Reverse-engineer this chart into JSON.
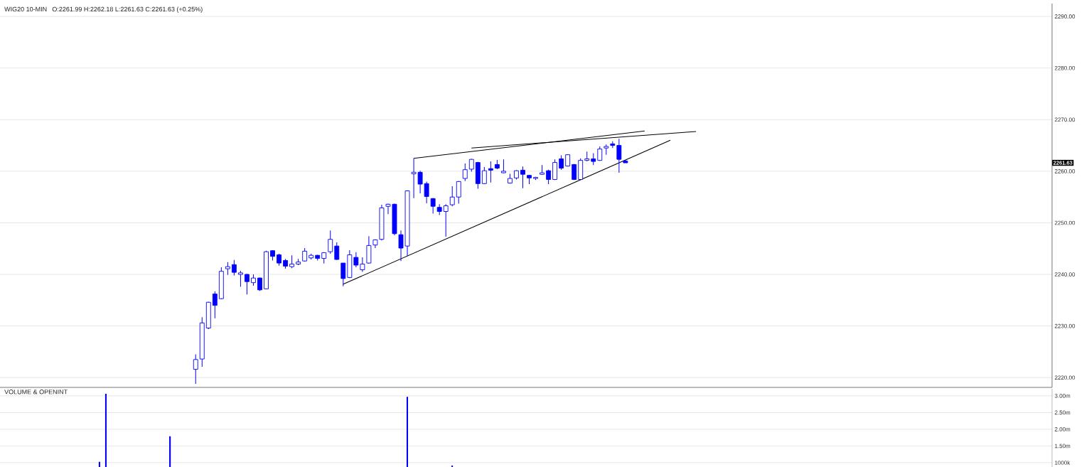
{
  "chart_data": [
    {
      "type": "candlestick",
      "title": "WIG20 10-MIN",
      "subtitle": "O:2261.99 H:2262.18 L:2261.63 C:2261.63 (+0.25%)",
      "color": "#0000ff",
      "categories": [
        null,
        null,
        null,
        null,
        null,
        null,
        null,
        null,
        null,
        null,
        null,
        null,
        null,
        null,
        null,
        null,
        null,
        null,
        null,
        null,
        null,
        null,
        null,
        null,
        null,
        null,
        null,
        null,
        null,
        null,
        null,
        null,
        null,
        null,
        null,
        null,
        null,
        null,
        null,
        null,
        null,
        null,
        null,
        null,
        null,
        null,
        null,
        null,
        null,
        null,
        null,
        null,
        null,
        null,
        null,
        null,
        null,
        null,
        null,
        null,
        null,
        null,
        null,
        null,
        null,
        null,
        null,
        null,
        null,
        null,
        null,
        null,
        null,
        null,
        null,
        null,
        null,
        null,
        null,
        null,
        null,
        null,
        null,
        null,
        null,
        null,
        null,
        null,
        null,
        null,
        null,
        null,
        null,
        null,
        null,
        null,
        null,
        null,
        null,
        null,
        null,
        null,
        null,
        null,
        null,
        null,
        null,
        null,
        null,
        null,
        null,
        null,
        null,
        null,
        null,
        null,
        null,
        null,
        null,
        null,
        null,
        null,
        null,
        null,
        null,
        null,
        null,
        null,
        null,
        null,
        null,
        null,
        null,
        null,
        null,
        null,
        null,
        null,
        null,
        null,
        null,
        null,
        null,
        null,
        null,
        null,
        null,
        null,
        null,
        null,
        null,
        null,
        null,
        null,
        null,
        null,
        null,
        null,
        null,
        null,
        null,
        null,
        null,
        null
      ],
      "ohlc": [
        null,
        null,
        null,
        null,
        null,
        null,
        null,
        null,
        null,
        null,
        null,
        null,
        null,
        null,
        null,
        null,
        null,
        null,
        null,
        null,
        null,
        null,
        null,
        null,
        null,
        null,
        null,
        null,
        null,
        null,
        [
          2221.6,
          2224.5,
          2218.8,
          2223.5
        ],
        [
          2223.6,
          2231.7,
          2222.1,
          2230.6
        ],
        [
          2229.6,
          2234.7,
          2229.4,
          2234.6
        ],
        [
          2236.2,
          2236.7,
          2231.5,
          2234.0
        ],
        [
          2235.3,
          2241.4,
          2235.2,
          2240.6
        ],
        [
          2241.1,
          2242.4,
          2239.9,
          2241.5
        ],
        [
          2241.9,
          2242.8,
          2239.8,
          2240.4
        ],
        [
          2240.0,
          2240.7,
          2237.6,
          2240.3
        ],
        [
          2240.0,
          2240.1,
          2236.1,
          2238.6
        ],
        [
          2238.4,
          2240.0,
          2237.8,
          2239.3
        ],
        [
          2239.3,
          2239.4,
          2236.8,
          2237.0
        ],
        [
          2237.2,
          2244.6,
          2237.1,
          2244.4
        ],
        [
          2244.6,
          2244.7,
          2242.7,
          2243.5
        ],
        [
          2243.8,
          2244.0,
          2241.7,
          2242.2
        ],
        [
          2242.7,
          2243.0,
          2241.1,
          2241.6
        ],
        [
          2241.5,
          2243.7,
          2241.2,
          2242.0
        ],
        [
          2242.0,
          2243.0,
          2241.8,
          2242.4
        ],
        [
          2242.6,
          2245.1,
          2242.5,
          2244.5
        ],
        [
          2243.2,
          2244.0,
          2242.9,
          2243.7
        ],
        [
          2243.7,
          2243.8,
          2242.7,
          2243.1
        ],
        [
          2243.1,
          2244.3,
          2242.1,
          2244.2
        ],
        [
          2244.4,
          2248.5,
          2244.0,
          2246.8
        ],
        [
          2245.5,
          2246.2,
          2242.8,
          2242.9
        ],
        [
          2242.2,
          2242.2,
          2237.7,
          2239.2
        ],
        [
          2239.4,
          2244.7,
          2239.3,
          2243.8
        ],
        [
          2243.3,
          2244.3,
          2241.4,
          2241.8
        ],
        [
          2240.9,
          2243.3,
          2240.5,
          2242.0
        ],
        [
          2242.2,
          2247.4,
          2242.1,
          2245.6
        ],
        [
          2245.7,
          2246.8,
          2245.1,
          2246.7
        ],
        [
          2246.8,
          2253.5,
          2246.6,
          2252.9
        ],
        [
          2253.2,
          2253.7,
          2251.7,
          2253.6
        ],
        [
          2253.6,
          2253.7,
          2247.6,
          2247.9
        ],
        [
          2247.7,
          2248.5,
          2242.6,
          2245.1
        ],
        [
          2245.5,
          2256.3,
          2243.6,
          2256.2
        ],
        [
          2259.5,
          2262.5,
          2254.8,
          2259.8
        ],
        [
          2259.8,
          2260.1,
          2255.7,
          2257.5
        ],
        [
          2257.6,
          2258.0,
          2253.8,
          2255.1
        ],
        [
          2254.7,
          2254.8,
          2251.8,
          2253.2
        ],
        [
          2253.0,
          2253.6,
          2251.5,
          2252.2
        ],
        [
          2252.2,
          2253.6,
          2247.3,
          2253.3
        ],
        [
          2253.5,
          2257.1,
          2253.2,
          2255.0
        ],
        [
          2255.0,
          2258.1,
          2253.7,
          2258.0
        ],
        [
          2258.6,
          2261.5,
          2258.1,
          2260.3
        ],
        [
          2260.4,
          2262.4,
          2259.9,
          2262.3
        ],
        [
          2261.7,
          2261.8,
          2256.6,
          2257.6
        ],
        [
          2257.6,
          2260.8,
          2257.5,
          2260.1
        ],
        [
          2260.5,
          2261.9,
          2257.8,
          2260.2
        ],
        [
          2261.3,
          2262.2,
          2260.4,
          2260.6
        ],
        [
          2259.7,
          2262.3,
          2259.6,
          2260.0
        ],
        [
          2257.7,
          2259.5,
          2257.6,
          2258.6
        ],
        [
          2258.7,
          2260.2,
          2258.4,
          2260.1
        ],
        [
          2260.2,
          2260.9,
          2256.7,
          2259.4
        ],
        [
          2259.2,
          2259.3,
          2257.5,
          2258.7
        ],
        [
          2258.6,
          2258.9,
          2258.3,
          2258.8
        ],
        [
          2259.4,
          2261.2,
          2259.3,
          2259.7
        ],
        [
          2260.1,
          2260.3,
          2257.5,
          2258.4
        ],
        [
          2258.4,
          2262.3,
          2258.3,
          2261.7
        ],
        [
          2262.4,
          2263.1,
          2260.3,
          2260.6
        ],
        [
          2261.0,
          2263.3,
          2260.9,
          2263.2
        ],
        [
          2261.3,
          2261.4,
          2258.3,
          2258.4
        ],
        [
          2258.4,
          2262.5,
          2258.3,
          2262.1
        ],
        [
          2262.1,
          2263.8,
          2261.9,
          2262.4
        ],
        [
          2262.4,
          2263.5,
          2261.2,
          2261.9
        ],
        [
          2262.1,
          2264.8,
          2262.0,
          2264.3
        ],
        [
          2264.5,
          2265.2,
          2263.2,
          2264.8
        ],
        [
          2265.3,
          2265.8,
          2264.5,
          2265.0
        ],
        [
          2265.0,
          2266.3,
          2259.7,
          2262.3
        ],
        [
          2261.99,
          2262.18,
          2261.63,
          2261.63
        ],
        null,
        null,
        null,
        null,
        null,
        null,
        null,
        null,
        null,
        null,
        null,
        null,
        null,
        null,
        null,
        null,
        null,
        null,
        null,
        null,
        null,
        null,
        null,
        null,
        null,
        null,
        null,
        null,
        null,
        null,
        null,
        null,
        null,
        null,
        null,
        null,
        null,
        null,
        null,
        null,
        null,
        null,
        null,
        null,
        null,
        null,
        null,
        null,
        null,
        null,
        null,
        null,
        null,
        null,
        null,
        null,
        null,
        null,
        null,
        null,
        null,
        null,
        null,
        null,
        null,
        null
      ],
      "series": [
        {
          "type": "line",
          "color": "#000000",
          "values": [
            null,
            null,
            null,
            null,
            null,
            null,
            null,
            null,
            null,
            null,
            null,
            null,
            null,
            null,
            null,
            null,
            null,
            null,
            null,
            null,
            null,
            null,
            null,
            null,
            null,
            null,
            null,
            null,
            null,
            null,
            null,
            null,
            null,
            null,
            null,
            null,
            null,
            null,
            null,
            null,
            null,
            null,
            null,
            null,
            null,
            null,
            null,
            null,
            null,
            null,
            null,
            null,
            null,
            2238.1,
            null,
            null,
            null,
            null,
            null,
            null,
            null,
            null,
            null,
            null,
            null,
            null,
            null,
            null,
            null,
            null,
            null,
            null,
            null,
            null,
            null,
            null,
            null,
            null,
            null,
            null,
            null,
            null,
            null,
            null,
            null,
            null,
            null,
            null,
            null,
            null,
            null,
            null,
            null,
            null,
            null,
            null,
            null,
            null,
            null,
            null,
            null,
            null,
            null,
            null,
            2266.0,
            null,
            null,
            null,
            null,
            null,
            null,
            null,
            null,
            null,
            null,
            null,
            null,
            null,
            null,
            null,
            null,
            null,
            null,
            null,
            null,
            null,
            null,
            null,
            null,
            null,
            null,
            null,
            null,
            null,
            null,
            null,
            null,
            null,
            null,
            null,
            null,
            null,
            null,
            null,
            null,
            null,
            null,
            null,
            null,
            null,
            null,
            null,
            null,
            null,
            null,
            null,
            null,
            null,
            null,
            null,
            null,
            null,
            null,
            null
          ]
        },
        {
          "type": "line",
          "color": "#000000",
          "values": [
            null,
            null,
            null,
            null,
            null,
            null,
            null,
            null,
            null,
            null,
            null,
            null,
            null,
            null,
            null,
            null,
            null,
            null,
            null,
            null,
            null,
            null,
            null,
            null,
            null,
            null,
            null,
            null,
            null,
            null,
            null,
            null,
            null,
            null,
            null,
            null,
            null,
            null,
            null,
            null,
            null,
            null,
            null,
            null,
            null,
            null,
            null,
            null,
            null,
            null,
            null,
            null,
            null,
            null,
            null,
            null,
            null,
            null,
            null,
            null,
            null,
            null,
            null,
            null,
            2262.5,
            null,
            null,
            null,
            null,
            null,
            null,
            null,
            null,
            null,
            null,
            null,
            null,
            null,
            null,
            null,
            null,
            null,
            null,
            null,
            null,
            null,
            null,
            null,
            null,
            null,
            null,
            null,
            null,
            null,
            null,
            null,
            null,
            null,
            null,
            null,
            2267.8,
            null,
            null,
            null,
            null,
            null,
            null,
            null,
            null,
            null,
            null,
            null,
            null,
            null,
            null,
            null,
            null,
            null,
            null,
            null,
            null,
            null,
            null,
            null,
            null,
            null,
            null,
            null,
            null,
            null,
            null,
            null,
            null,
            null,
            null,
            null,
            null,
            null,
            null,
            null,
            null,
            null,
            null,
            null,
            null,
            null,
            null,
            null,
            null,
            null,
            null,
            null,
            null,
            null,
            null,
            null,
            null,
            null,
            null,
            null,
            null,
            null,
            null,
            null
          ]
        },
        {
          "type": "line",
          "color": "#000000",
          "values": [
            null,
            null,
            null,
            null,
            null,
            null,
            null,
            null,
            null,
            null,
            null,
            null,
            null,
            null,
            null,
            null,
            null,
            null,
            null,
            null,
            null,
            null,
            null,
            null,
            null,
            null,
            null,
            null,
            null,
            null,
            null,
            null,
            null,
            null,
            null,
            null,
            null,
            null,
            null,
            null,
            null,
            null,
            null,
            null,
            null,
            null,
            null,
            null,
            null,
            null,
            null,
            null,
            null,
            null,
            null,
            null,
            null,
            null,
            null,
            null,
            null,
            null,
            null,
            null,
            null,
            null,
            null,
            null,
            null,
            null,
            null,
            null,
            null,
            2264.5,
            null,
            null,
            null,
            null,
            null,
            null,
            null,
            null,
            null,
            null,
            null,
            null,
            null,
            null,
            null,
            null,
            null,
            null,
            null,
            null,
            null,
            null,
            null,
            null,
            null,
            null,
            null,
            null,
            null,
            null,
            null,
            null,
            null,
            null,
            2267.7,
            null,
            null,
            null,
            null,
            null,
            null,
            null,
            null,
            null,
            null,
            null,
            null,
            null,
            null,
            null,
            null,
            null,
            null,
            null,
            null,
            null,
            null,
            null,
            null,
            null,
            null,
            null,
            null,
            null,
            null,
            null,
            null,
            null,
            null,
            null,
            null,
            null,
            null,
            null,
            null,
            null,
            null,
            null,
            null,
            null,
            null,
            null,
            null,
            null,
            null,
            null,
            null,
            null,
            null,
            null
          ]
        }
      ],
      "ylim": [
        2218.1,
        2292.5
      ],
      "yticks": [
        {
          "value": 2220,
          "label": "2220.00"
        },
        {
          "value": 2230,
          "label": "2230.00"
        },
        {
          "value": 2240,
          "label": "2240.00"
        },
        {
          "value": 2250,
          "label": "2250.00"
        },
        {
          "value": 2260,
          "label": "2260.00"
        },
        {
          "value": 2270,
          "label": "2270.00"
        },
        {
          "value": 2280,
          "label": "2280.00"
        },
        {
          "value": 2290,
          "label": "2290.00"
        }
      ],
      "annotations": [
        "2261.63"
      ],
      "grid": "y",
      "tick_labels": "y"
    },
    {
      "type": "bar",
      "title": "VOLUME & OPENINT",
      "color": "#0000ff",
      "categories": [
        null,
        null,
        null,
        null,
        null,
        null,
        null,
        null,
        null,
        null,
        null,
        null,
        null,
        null,
        null,
        null,
        null,
        null,
        null,
        null,
        null,
        null,
        null,
        null,
        null,
        null,
        null,
        null,
        null,
        null,
        null,
        null,
        null,
        null,
        null,
        null,
        null,
        null,
        null,
        null,
        null,
        null,
        null,
        null,
        null,
        null,
        null,
        null,
        null,
        null,
        null,
        null,
        null,
        null,
        null,
        null,
        null,
        null,
        null,
        null,
        null,
        null,
        null,
        null,
        null,
        null,
        null,
        null,
        null,
        null,
        null,
        null,
        null,
        null,
        null,
        null,
        null,
        null,
        null,
        null,
        null,
        null,
        null,
        null,
        null,
        null,
        null,
        null,
        null,
        null,
        null,
        null,
        null,
        null,
        null,
        null,
        null,
        null,
        null,
        null,
        null,
        null,
        null,
        null,
        null,
        null,
        null,
        null,
        null,
        null,
        null,
        null,
        null,
        null,
        null,
        null,
        null,
        null,
        null,
        null,
        null,
        null,
        null,
        null,
        null,
        null,
        null,
        null,
        null,
        null,
        null,
        null,
        null,
        null,
        null,
        null,
        null,
        null,
        null,
        null,
        null,
        null,
        null,
        null,
        null,
        null,
        null,
        null,
        null,
        null,
        null,
        null,
        null,
        null,
        null,
        null,
        null,
        null,
        null,
        null,
        null,
        null,
        null,
        null
      ],
      "values": [
        null,
        null,
        null,
        null,
        null,
        null,
        null,
        null,
        null,
        null,
        null,
        null,
        null,
        null,
        null,
        1030000,
        3060000,
        null,
        null,
        null,
        null,
        null,
        null,
        null,
        null,
        null,
        1790000,
        null,
        null,
        null,
        null,
        null,
        null,
        null,
        null,
        null,
        null,
        null,
        null,
        null,
        null,
        null,
        null,
        null,
        null,
        null,
        null,
        null,
        null,
        null,
        null,
        null,
        null,
        null,
        null,
        null,
        null,
        null,
        null,
        null,
        null,
        null,
        null,
        2970000,
        null,
        null,
        null,
        null,
        null,
        null,
        920000,
        null,
        null,
        null,
        null,
        null,
        null,
        null,
        null,
        null,
        null,
        null,
        null,
        null,
        null,
        null,
        null,
        null,
        null,
        null,
        null,
        null,
        null,
        null,
        null,
        null,
        null,
        null,
        null,
        null,
        null,
        null,
        null,
        null,
        null,
        null,
        null,
        null,
        null,
        null,
        null,
        null,
        null,
        null,
        null,
        null,
        null,
        null,
        null,
        null,
        null,
        null,
        null,
        null,
        null,
        null,
        null,
        null,
        null,
        null,
        null,
        null,
        null,
        null,
        null,
        null,
        null,
        null,
        null,
        null,
        null,
        null,
        null,
        null,
        null,
        null,
        null,
        null,
        null,
        null,
        null,
        null,
        null,
        null,
        null,
        null,
        null,
        null,
        null,
        null,
        null,
        null,
        null,
        null
      ],
      "ylim": [
        870000,
        3210000
      ],
      "yticks": [
        {
          "value": 1000000,
          "label": "1000k"
        },
        {
          "value": 1500000,
          "label": "1.50m"
        },
        {
          "value": 2000000,
          "label": "2.00m"
        },
        {
          "value": 2500000,
          "label": "2.50m"
        },
        {
          "value": 3000000,
          "label": "3.00m"
        }
      ],
      "grid": "y",
      "tick_labels": "y"
    }
  ]
}
